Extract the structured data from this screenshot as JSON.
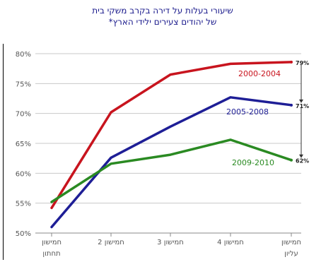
{
  "chart_data": {
    "type": "line",
    "title": "שיעורי בעלות על דירה בקרב משקי בית",
    "subtitle": "של יהודים צעירים ילידי הארץ*",
    "categories": [
      [
        "חמישון",
        "תחתון"
      ],
      [
        "חמישון 2"
      ],
      [
        "חמישון 3"
      ],
      [
        "חמישון 4"
      ],
      [
        "חמישון",
        "עליון"
      ]
    ],
    "ylim": [
      50,
      80
    ],
    "yticks": [
      50,
      55,
      60,
      65,
      70,
      75,
      80
    ],
    "ytick_suffix": "%",
    "grid": true,
    "series": [
      {
        "name": "2000-2004",
        "color": "#c8141e",
        "values": [
          54.2,
          70.2,
          76.5,
          78.3,
          78.6
        ]
      },
      {
        "name": "2005-2008",
        "color": "#1e1e96",
        "values": [
          51.0,
          62.6,
          67.8,
          72.7,
          71.4
        ]
      },
      {
        "name": "2009-2010",
        "color": "#2a8a22",
        "values": [
          55.2,
          61.6,
          63.1,
          65.6,
          62.2
        ]
      }
    ],
    "end_labels": [
      "79%",
      "71%",
      "62%"
    ]
  }
}
